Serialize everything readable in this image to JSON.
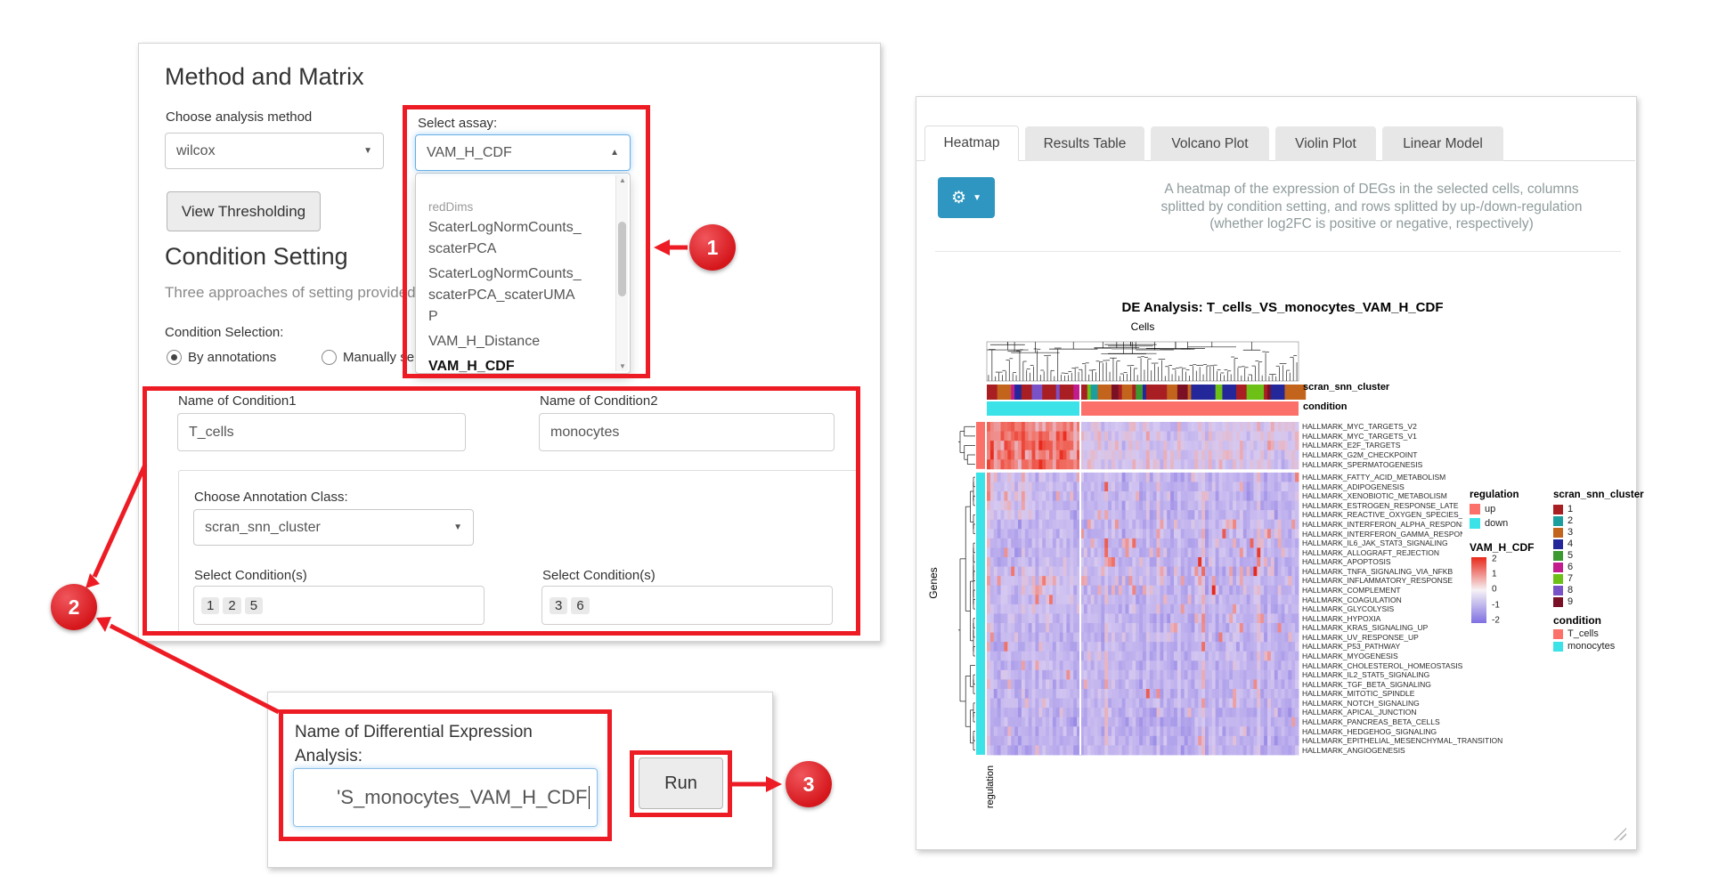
{
  "annotations": {
    "badge1": "1",
    "badge2": "2",
    "badge3": "3"
  },
  "left_panel": {
    "method_heading": "Method and Matrix",
    "method_label": "Choose analysis method",
    "method_value": "wilcox",
    "threshold_button": "View Thresholding",
    "condition_heading": "Condition Setting",
    "condition_subtext": "Three approaches of setting provided...",
    "assay_label": "Select assay:",
    "assay_value": "VAM_H_CDF",
    "assay_group_label": "redDims",
    "assay_options": [
      "ScaterLogNormCounts_scaterPCA",
      "ScaterLogNormCounts_scaterPCA_scaterUMAP",
      "VAM_H_Distance",
      "VAM_H_CDF"
    ],
    "assay_selected": "VAM_H_CDF",
    "condition_selection_label": "Condition Selection:",
    "radio_by_annotations": "By annotations",
    "radio_manual": "Manually select individual cells",
    "cond1_label": "Name of Condition1",
    "cond1_value": "T_cells",
    "cond2_label": "Name of Condition2",
    "cond2_value": "monocytes",
    "annotation_class_label": "Choose Annotation Class:",
    "annotation_class_value": "scran_snn_cluster",
    "select_conditions_label": "Select Condition(s)",
    "cond1_selected": [
      "1",
      "2",
      "5"
    ],
    "cond2_selected": [
      "3",
      "6"
    ]
  },
  "bottom_panel": {
    "name_label": "Name of Differential Expression Analysis:",
    "name_value": "'S_monocytes_VAM_H_CDF",
    "run_button": "Run"
  },
  "right_panel": {
    "tabs": [
      "Heatmap",
      "Results Table",
      "Volcano Plot",
      "Violin Plot",
      "Linear Model"
    ],
    "active_tab": "Heatmap",
    "description_lines": [
      "A heatmap of the expression of DEGs in the selected cells, columns",
      "splitted by condition setting, and rows splitted by up-/down-regulation",
      "(whether log2FC is positive or negative, respectively)"
    ],
    "heatmap": {
      "title": "DE Analysis: T_cells_VS_monocytes_VAM_H_CDF",
      "cells_label": "Cells",
      "genes_label": "Genes",
      "regulation_axis_label": "regulation",
      "col_label_cluster": "scran_snn_cluster",
      "col_label_condition": "condition",
      "row_labels": [
        "HALLMARK_MYC_TARGETS_V2",
        "HALLMARK_MYC_TARGETS_V1",
        "HALLMARK_E2F_TARGETS",
        "HALLMARK_G2M_CHECKPOINT",
        "HALLMARK_SPERMATOGENESIS",
        "HALLMARK_FATTY_ACID_METABOLISM",
        "HALLMARK_ADIPOGENESIS",
        "HALLMARK_XENOBIOTIC_METABOLISM",
        "HALLMARK_ESTROGEN_RESPONSE_LATE",
        "HALLMARK_REACTIVE_OXYGEN_SPECIES_PATHWAY",
        "HALLMARK_INTERFERON_ALPHA_RESPONSE",
        "HALLMARK_INTERFERON_GAMMA_RESPONSE",
        "HALLMARK_IL6_JAK_STAT3_SIGNALING",
        "HALLMARK_ALLOGRAFT_REJECTION",
        "HALLMARK_APOPTOSIS",
        "HALLMARK_TNFA_SIGNALING_VIA_NFKB",
        "HALLMARK_INFLAMMATORY_RESPONSE",
        "HALLMARK_COMPLEMENT",
        "HALLMARK_COAGULATION",
        "HALLMARK_GLYCOLYSIS",
        "HALLMARK_HYPOXIA",
        "HALLMARK_KRAS_SIGNALING_UP",
        "HALLMARK_UV_RESPONSE_UP",
        "HALLMARK_P53_PATHWAY",
        "HALLMARK_MYOGENESIS",
        "HALLMARK_CHOLESTEROL_HOMEOSTASIS",
        "HALLMARK_IL2_STAT5_SIGNALING",
        "HALLMARK_TGF_BETA_SIGNALING",
        "HALLMARK_MITOTIC_SPINDLE",
        "HALLMARK_NOTCH_SIGNALING",
        "HALLMARK_APICAL_JUNCTION",
        "HALLMARK_PANCREAS_BETA_CELLS",
        "HALLMARK_HEDGEHOG_SIGNALING",
        "HALLMARK_EPITHELIAL_MESENCHYMAL_TRANSITION",
        "HALLMARK_ANGIOGENESIS"
      ],
      "legends": {
        "regulation": {
          "title": "regulation",
          "items": [
            {
              "label": "up",
              "color": "#fb7169"
            },
            {
              "label": "down",
              "color": "#3be3e8"
            }
          ]
        },
        "vam": {
          "title": "VAM_H_CDF",
          "ticks": [
            "2",
            "1",
            "0",
            "-1",
            "-2"
          ],
          "color_top": "#e8281a",
          "color_mid": "#f6f2f5",
          "color_bottom": "#7e6fe2"
        },
        "cluster": {
          "title": "scran_snn_cluster",
          "items": [
            {
              "label": "1",
              "color": "#a81e22"
            },
            {
              "label": "2",
              "color": "#1d9e9e"
            },
            {
              "label": "3",
              "color": "#c2641c"
            },
            {
              "label": "4",
              "color": "#232799"
            },
            {
              "label": "5",
              "color": "#3c9932"
            },
            {
              "label": "6",
              "color": "#c21c8e"
            },
            {
              "label": "7",
              "color": "#6cc016"
            },
            {
              "label": "8",
              "color": "#7a52c7"
            },
            {
              "label": "9",
              "color": "#7a1026"
            }
          ]
        },
        "condition": {
          "title": "condition",
          "items": [
            {
              "label": "T_cells",
              "color": "#fb7169"
            },
            {
              "label": "monocytes",
              "color": "#3be3e8"
            }
          ]
        }
      }
    }
  }
}
